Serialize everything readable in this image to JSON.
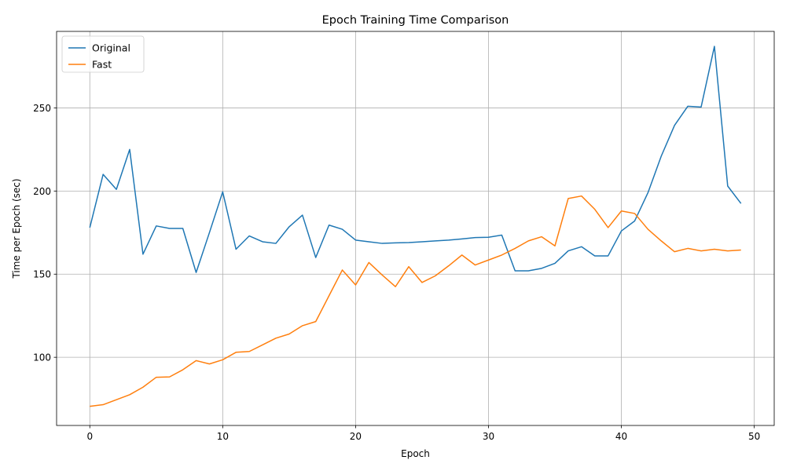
{
  "chart_data": {
    "type": "line",
    "title": "Epoch Training Time Comparison",
    "xlabel": "Epoch",
    "ylabel": "Time per Epoch (sec)",
    "xlim": [
      -2.5,
      51.5
    ],
    "ylim": [
      59,
      296
    ],
    "xticks": [
      0,
      10,
      20,
      30,
      40,
      50
    ],
    "yticks": [
      100,
      150,
      200,
      250
    ],
    "grid": true,
    "legend_position": "top-left",
    "x": [
      0,
      1,
      2,
      3,
      4,
      5,
      6,
      7,
      8,
      9,
      10,
      11,
      12,
      13,
      14,
      15,
      16,
      17,
      18,
      19,
      20,
      21,
      22,
      23,
      24,
      25,
      26,
      27,
      28,
      29,
      30,
      31,
      32,
      33,
      34,
      35,
      36,
      37,
      38,
      39,
      40,
      41,
      42,
      43,
      44,
      45,
      46,
      47,
      48,
      49
    ],
    "series": [
      {
        "name": "Original",
        "color": "#1f77b4",
        "values": [
          178,
          210,
          201,
          225,
          162,
          179,
          177.5,
          177.5,
          151,
          175,
          199.5,
          165,
          173,
          169.5,
          168.5,
          178.5,
          185.5,
          160,
          179.5,
          177,
          170.5,
          169.5,
          168.5,
          168.8,
          169,
          169.5,
          170,
          170.5,
          171.2,
          172,
          172.2,
          173.5,
          152,
          152,
          153.5,
          156.5,
          164,
          166.5,
          161,
          161,
          176,
          182,
          199,
          221,
          239.5,
          251,
          250.5,
          287,
          203,
          192.5
        ]
      },
      {
        "name": "Fast",
        "color": "#ff7f0e",
        "values": [
          70.5,
          71.5,
          74.5,
          77.5,
          82,
          88,
          88.2,
          92.5,
          98,
          96,
          98.5,
          103,
          103.5,
          107.5,
          111.5,
          114,
          119,
          121.5,
          137,
          152.5,
          143.5,
          157,
          149.5,
          142.5,
          154.5,
          145,
          149,
          155,
          161.5,
          155.5,
          158.5,
          161.5,
          165.5,
          170,
          172.5,
          167,
          195.5,
          197,
          189,
          178,
          188,
          186.5,
          177,
          170,
          163.5,
          165.5,
          164,
          165,
          164,
          164.5
        ]
      }
    ]
  }
}
